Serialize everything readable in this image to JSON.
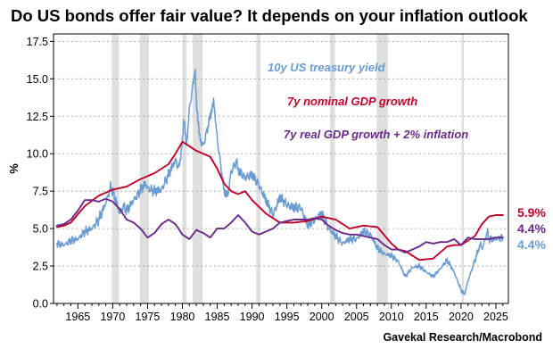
{
  "chart_data": {
    "type": "line",
    "title": "Do US bonds offer fair value? It depends on your inflation outlook",
    "ylabel": "%",
    "xlim": [
      1961.5,
      2026.8
    ],
    "ylim": [
      0,
      18
    ],
    "yticks": [
      0.0,
      2.5,
      5.0,
      7.5,
      10.0,
      12.5,
      15.0,
      17.5
    ],
    "ytick_labels": [
      "0.0",
      "2.5",
      "5.0",
      "7.5",
      "10.0",
      "12.5",
      "15.0",
      "17.5"
    ],
    "xticks": [
      1965,
      1970,
      1975,
      1980,
      1985,
      1990,
      1995,
      2000,
      2005,
      2010,
      2015,
      2020,
      2025
    ],
    "xtick_labels": [
      "1965",
      "1970",
      "1975",
      "1980",
      "1985",
      "1990",
      "1995",
      "2000",
      "2005",
      "2010",
      "2015",
      "2020",
      "2025"
    ],
    "grid": true,
    "recessions": [
      [
        1969.9,
        1970.9
      ],
      [
        1973.9,
        1975.2
      ],
      [
        1980.0,
        1980.6
      ],
      [
        1981.5,
        1982.9
      ],
      [
        1990.6,
        1991.2
      ],
      [
        2001.2,
        2001.9
      ],
      [
        2007.9,
        2009.5
      ],
      [
        2020.1,
        2020.4
      ]
    ],
    "series": [
      {
        "name": "10y US treasury yield",
        "color": "#6a9bd1",
        "end_label": "4.4%",
        "x": [
          1962,
          1963,
          1964,
          1965,
          1966,
          1967,
          1968,
          1969,
          1969.7,
          1970,
          1970.5,
          1971,
          1971.5,
          1972,
          1973,
          1973.5,
          1974,
          1974.7,
          1975,
          1976,
          1977,
          1978,
          1979,
          1979.5,
          1980,
          1980.2,
          1980.6,
          1981,
          1981.5,
          1981.8,
          1982,
          1982.5,
          1983,
          1983.5,
          1984,
          1984.5,
          1985,
          1986,
          1986.5,
          1987,
          1987.8,
          1988,
          1989,
          1990,
          1991,
          1992,
          1993,
          1994,
          1995,
          1996,
          1997,
          1998,
          1999,
          2000,
          2001,
          2002,
          2003,
          2004,
          2005,
          2006,
          2007,
          2008,
          2009,
          2010,
          2011,
          2012,
          2013,
          2014,
          2015,
          2016,
          2017,
          2018,
          2019,
          2020,
          2020.5,
          2021,
          2022,
          2022.8,
          2023,
          2023.8,
          2024,
          2025,
          2026
        ],
        "y": [
          4.0,
          3.9,
          4.2,
          4.3,
          4.8,
          5.0,
          5.6,
          6.7,
          7.8,
          7.5,
          6.8,
          6.0,
          6.5,
          6.2,
          6.9,
          7.2,
          7.6,
          8.0,
          7.7,
          7.5,
          7.6,
          8.6,
          9.6,
          9.0,
          10.8,
          12.5,
          10.5,
          13.0,
          14.5,
          15.8,
          13.5,
          11.0,
          10.5,
          11.5,
          12.5,
          13.5,
          11.0,
          7.5,
          7.2,
          8.8,
          9.5,
          8.9,
          8.4,
          8.6,
          7.9,
          6.9,
          5.9,
          7.1,
          6.6,
          6.4,
          6.4,
          5.2,
          5.6,
          6.0,
          5.0,
          4.5,
          4.0,
          4.3,
          4.3,
          4.8,
          4.6,
          3.7,
          3.3,
          3.2,
          2.8,
          1.8,
          2.4,
          2.5,
          2.1,
          1.8,
          2.3,
          2.9,
          2.1,
          0.9,
          0.6,
          1.5,
          2.9,
          4.0,
          3.6,
          4.8,
          4.3,
          4.3,
          4.4
        ]
      },
      {
        "name": "7y nominal GDP growth",
        "color": "#c0002a",
        "end_label": "5.9%",
        "x": [
          1962,
          1963,
          1964,
          1966,
          1968,
          1970,
          1972,
          1974,
          1976,
          1978,
          1979,
          1980,
          1981,
          1982,
          1983,
          1984,
          1985,
          1986,
          1987,
          1988,
          1989,
          1990,
          1992,
          1994,
          1996,
          1998,
          2000,
          2002,
          2004,
          2006,
          2008,
          2010,
          2011,
          2012,
          2014,
          2016,
          2018,
          2019,
          2020,
          2021,
          2022,
          2023,
          2024,
          2025,
          2026
        ],
        "y": [
          5.1,
          5.2,
          5.4,
          6.5,
          7.2,
          7.6,
          7.8,
          8.3,
          8.7,
          9.3,
          10.0,
          10.8,
          10.5,
          10.2,
          10.0,
          9.8,
          9.0,
          8.0,
          7.5,
          7.3,
          7.5,
          6.9,
          6.0,
          5.4,
          5.4,
          5.5,
          5.8,
          5.6,
          5.0,
          5.2,
          5.1,
          4.0,
          3.6,
          3.5,
          2.9,
          3.0,
          3.8,
          3.9,
          3.9,
          4.2,
          4.5,
          5.3,
          5.8,
          5.9,
          5.9
        ]
      },
      {
        "name": "7y real GDP growth + 2% inflation",
        "color": "#6a2a8a",
        "end_label": "4.4%",
        "x": [
          1962,
          1963,
          1964,
          1965,
          1966,
          1967,
          1968,
          1969,
          1970,
          1971,
          1972,
          1973,
          1974,
          1975,
          1976,
          1977,
          1978,
          1979,
          1980,
          1981,
          1982,
          1983,
          1984,
          1985,
          1986,
          1987,
          1988,
          1989,
          1990,
          1991,
          1992,
          1993,
          1994,
          1995,
          1996,
          1997,
          1998,
          1999,
          2000,
          2001,
          2002,
          2003,
          2004,
          2005,
          2006,
          2007,
          2008,
          2009,
          2010,
          2011,
          2012,
          2013,
          2014,
          2015,
          2016,
          2017,
          2018,
          2019,
          2020,
          2021,
          2022,
          2023,
          2024,
          2025,
          2026
        ],
        "y": [
          5.2,
          5.3,
          5.6,
          6.2,
          6.9,
          6.9,
          6.8,
          7.0,
          6.8,
          6.3,
          5.6,
          5.4,
          5.0,
          4.4,
          4.7,
          5.3,
          5.6,
          5.3,
          4.6,
          4.3,
          4.9,
          4.7,
          4.4,
          5.0,
          5.0,
          5.4,
          5.9,
          5.4,
          4.8,
          4.6,
          4.8,
          5.0,
          5.4,
          5.5,
          5.6,
          5.6,
          5.6,
          5.7,
          5.6,
          5.2,
          4.9,
          4.7,
          4.6,
          4.6,
          4.5,
          4.4,
          4.3,
          3.9,
          3.6,
          3.6,
          3.4,
          3.6,
          3.8,
          4.1,
          4.0,
          4.1,
          4.1,
          4.3,
          3.9,
          4.4,
          4.3,
          4.3,
          4.3,
          4.4,
          4.4
        ]
      }
    ],
    "annotations": [
      {
        "text": "10y US treasury yield",
        "color": "#6a9bd1"
      },
      {
        "text": "7y nominal GDP growth",
        "color": "#c0002a"
      },
      {
        "text": "7y real GDP growth + 2% inflation",
        "color": "#6a2a8a"
      }
    ],
    "source": "Gavekal Research/Macrobond"
  }
}
